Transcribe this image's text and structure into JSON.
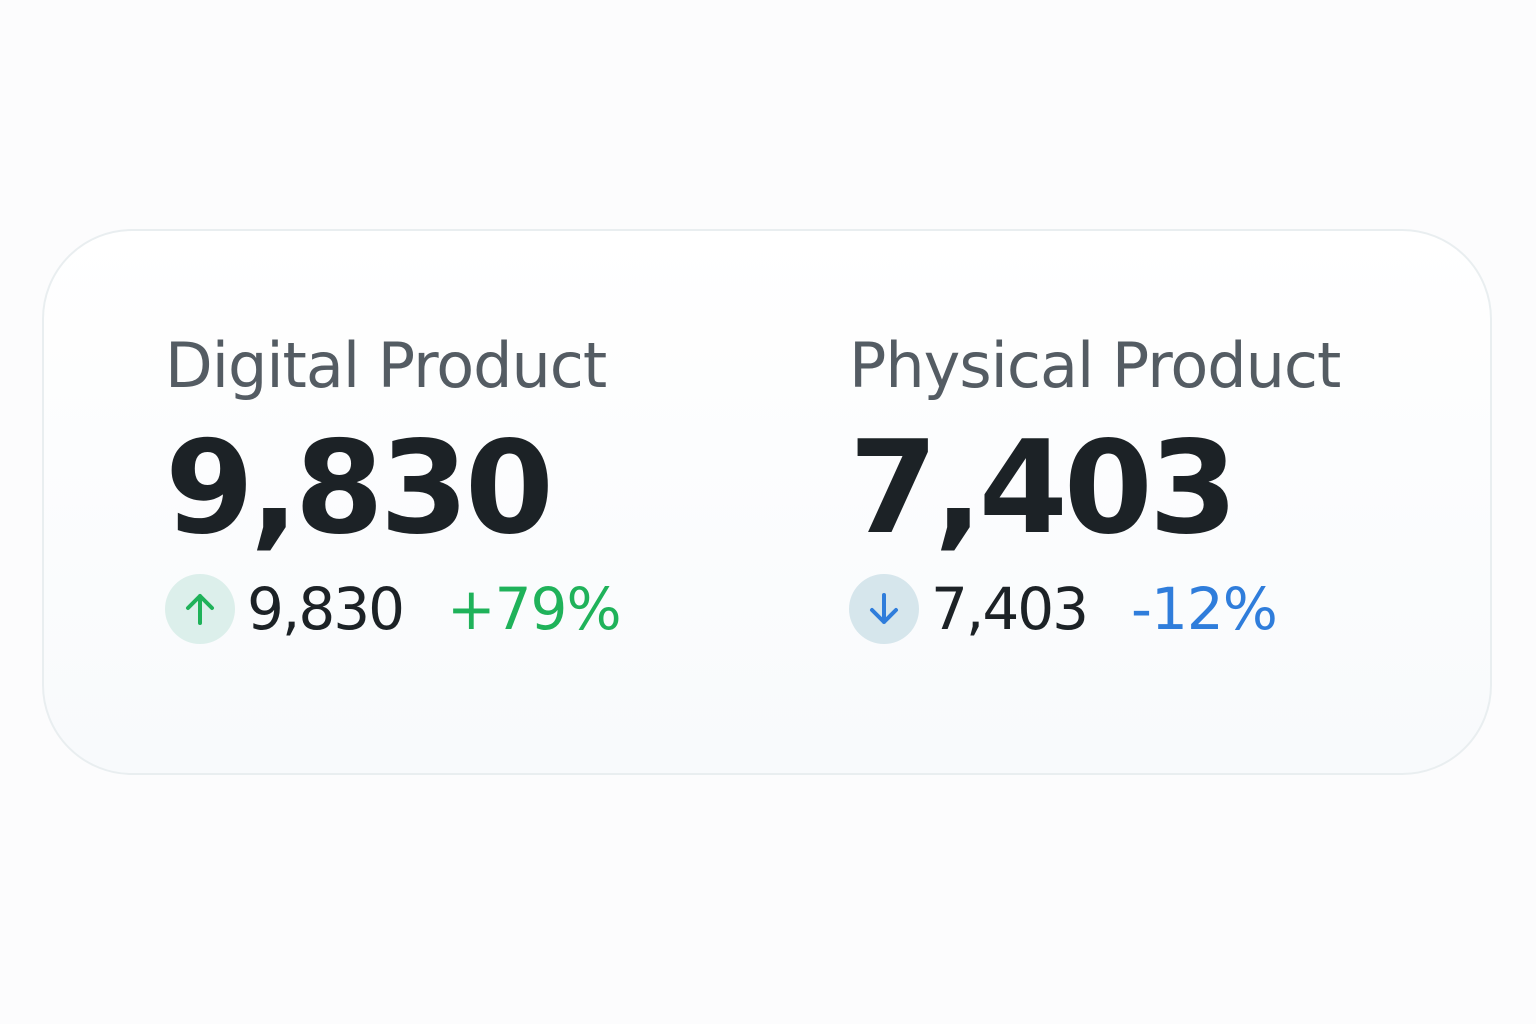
{
  "cards": [
    {
      "label": "Digital Product",
      "value": "9,830",
      "sub_value": "9,830",
      "change": "+79%",
      "trend": "up"
    },
    {
      "label": "Physical Product",
      "value": "7,403",
      "sub_value": "7,403",
      "change": "-12%",
      "trend": "down"
    }
  ]
}
